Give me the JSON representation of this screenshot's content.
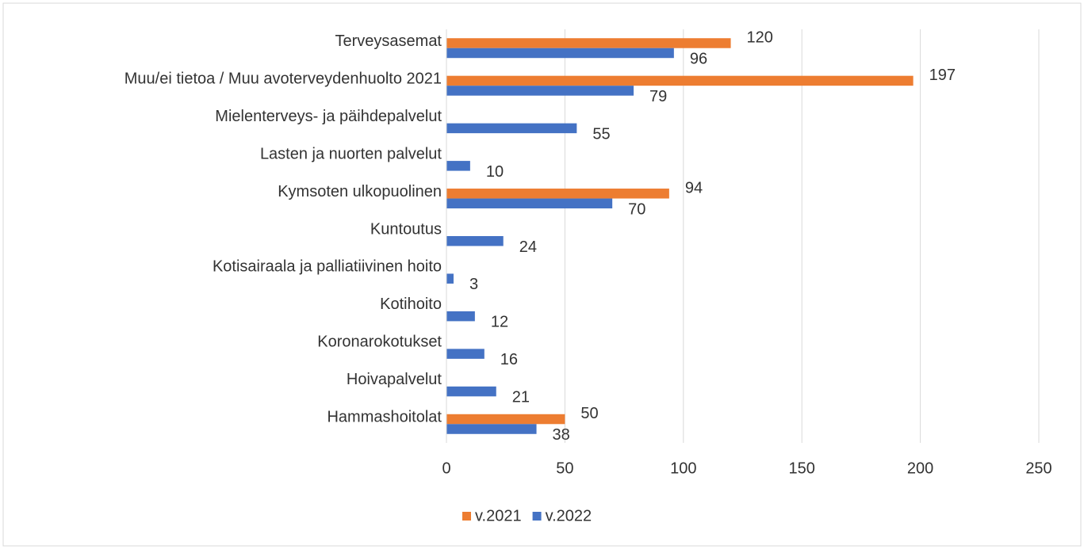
{
  "chart_data": {
    "type": "barh",
    "categories": [
      "Terveysasemat",
      "Muu/ei tietoa / Muu avoterveydenhuolto 2021",
      "Mielenterveys- ja päihdepalvelut",
      "Lasten ja nuorten palvelut",
      "Kymsoten ulkopuolinen",
      "Kuntoutus",
      "Kotisairaala ja palliatiivinen hoito",
      "Kotihoito",
      "Koronarokotukset",
      "Hoivapalvelut",
      "Hammashoitolat"
    ],
    "series": [
      {
        "name": "v.2021",
        "color": "#ed7d31",
        "values": [
          120,
          197,
          null,
          null,
          94,
          null,
          null,
          null,
          null,
          null,
          50
        ]
      },
      {
        "name": "v.2022",
        "color": "#4472c4",
        "values": [
          96,
          79,
          55,
          10,
          70,
          24,
          3,
          12,
          16,
          21,
          38
        ]
      }
    ],
    "xlim": [
      0,
      250
    ],
    "xticks": [
      0,
      50,
      100,
      150,
      200,
      250
    ],
    "grid": true,
    "legend": "bottom"
  }
}
